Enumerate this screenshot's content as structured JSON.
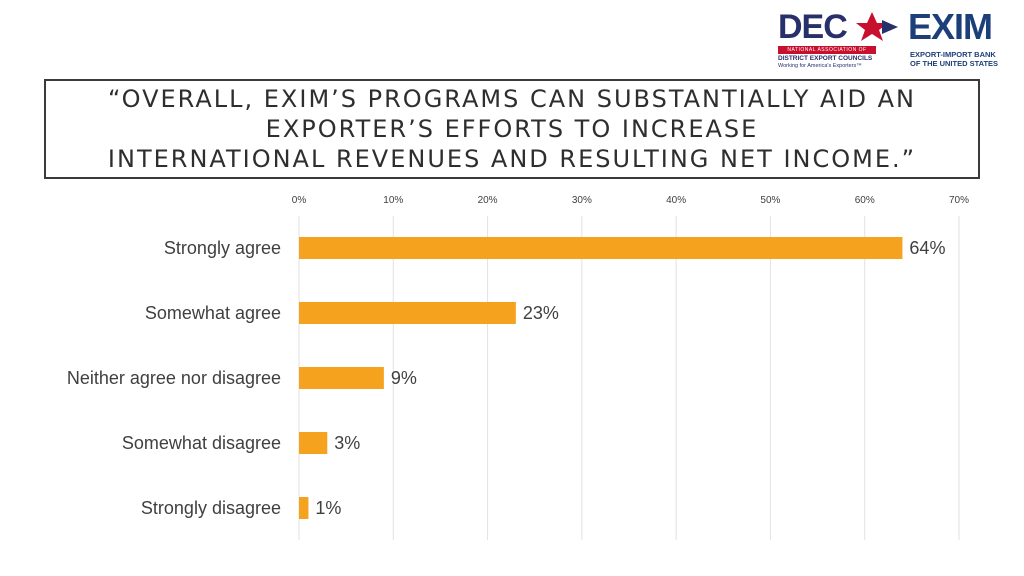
{
  "logos": {
    "dec": {
      "word": "DEC",
      "band": "NATIONAL ASSOCIATION OF",
      "org": "DISTRICT EXPORT COUNCILS",
      "tagline": "Working for America's Exporters™"
    },
    "exim": {
      "word": "EXIM",
      "line1": "EXPORT-IMPORT BANK",
      "line2": "OF THE UNITED STATES"
    }
  },
  "title_lines": [
    "“OVERALL, EXIM’S PROGRAMS CAN SUBSTANTIALLY AID AN",
    "EXPORTER’S EFFORTS TO INCREASE",
    "INTERNATIONAL REVENUES AND RESULTING NET INCOME.”"
  ],
  "colors": {
    "bar": "#f5a21f",
    "grid": "#e2e2e2",
    "text": "#404040",
    "dec_navy": "#27306b",
    "dec_red": "#c8102e",
    "exim_blue": "#1c3f7a"
  },
  "chart_data": {
    "type": "bar",
    "orientation": "horizontal",
    "title": "“OVERALL, EXIM’S PROGRAMS CAN SUBSTANTIALLY AID AN EXPORTER’S EFFORTS TO INCREASE INTERNATIONAL REVENUES AND RESULTING NET INCOME.”",
    "categories": [
      "Strongly agree",
      "Somewhat agree",
      "Neither agree nor disagree",
      "Somewhat disagree",
      "Strongly disagree"
    ],
    "values": [
      64,
      23,
      9,
      3,
      1
    ],
    "value_labels": [
      "64%",
      "23%",
      "9%",
      "3%",
      "1%"
    ],
    "xlim": [
      0,
      70
    ],
    "xticks": [
      0,
      10,
      20,
      30,
      40,
      50,
      60,
      70
    ],
    "xtick_labels": [
      "0%",
      "10%",
      "20%",
      "30%",
      "40%",
      "50%",
      "60%",
      "70%"
    ],
    "xaxis_position": "top",
    "grid": true,
    "legend": "none"
  }
}
